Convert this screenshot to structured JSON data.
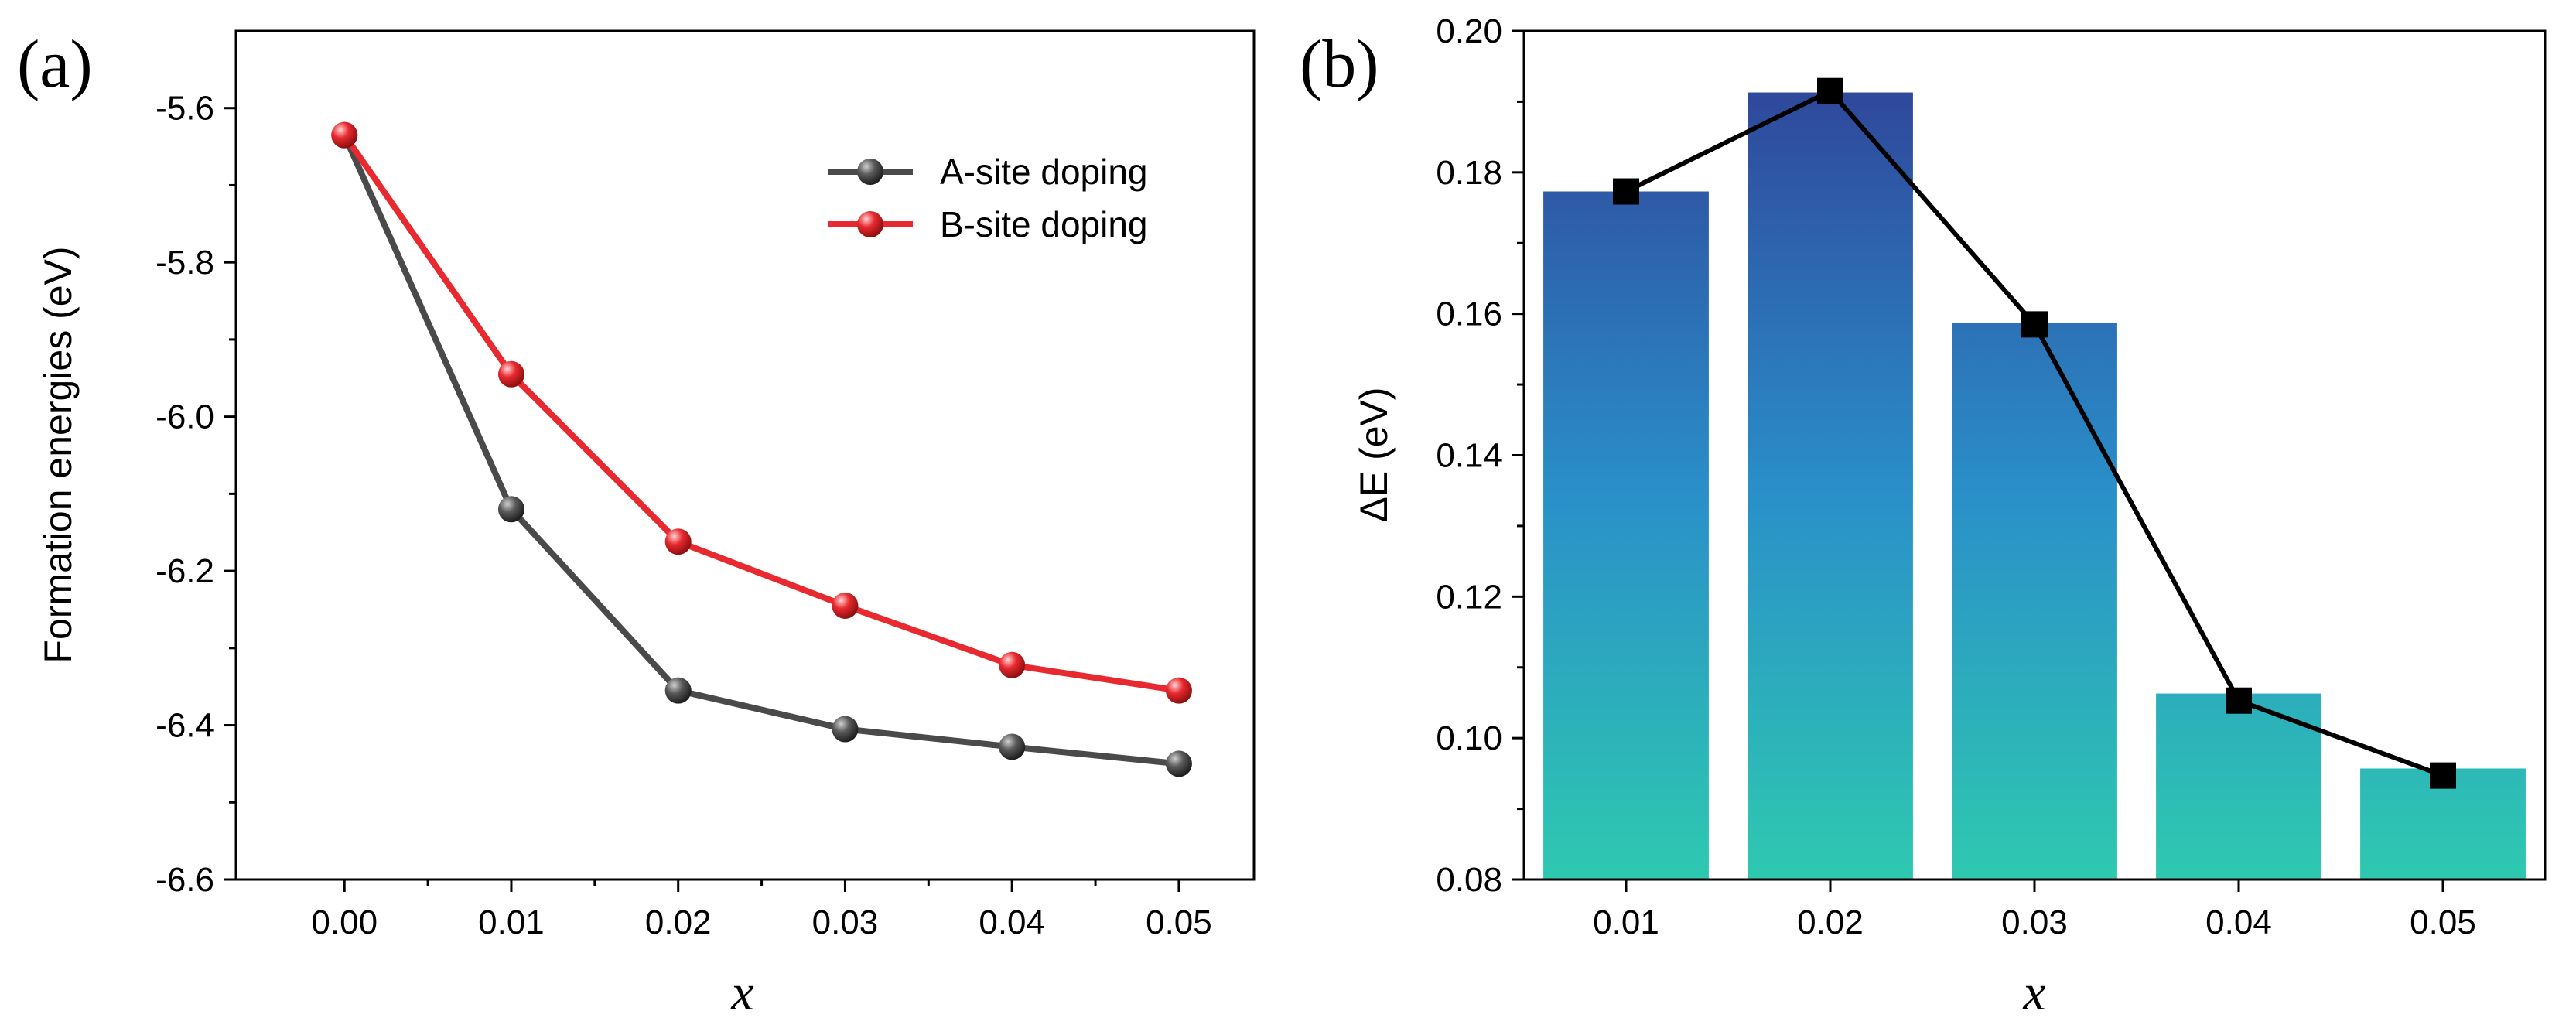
{
  "chart_data": [
    {
      "panel": "(a)",
      "type": "line",
      "xlabel": "x",
      "ylabel": "Formation energies (eV)",
      "x": [
        0.0,
        0.01,
        0.02,
        0.03,
        0.04,
        0.05
      ],
      "xticks": [
        "0.00",
        "0.01",
        "0.02",
        "0.03",
        "0.04",
        "0.05"
      ],
      "xlim": [
        -0.0065,
        0.0545
      ],
      "ylim": [
        -6.6,
        -5.5
      ],
      "yticks": [
        -6.6,
        -6.4,
        -6.2,
        -6.0,
        -5.8,
        -5.6
      ],
      "ytick_labels": [
        "-6.6",
        "-6.4",
        "-6.2",
        "-6.0",
        "-5.8",
        "-5.6"
      ],
      "legend_position": "top-right",
      "series": [
        {
          "name": "A-site doping",
          "color": "#4a4a4a",
          "values": [
            -5.635,
            -6.12,
            -6.355,
            -6.405,
            -6.428,
            -6.45
          ]
        },
        {
          "name": "B-site doping",
          "color": "#e8292f",
          "values": [
            -5.635,
            -5.945,
            -6.162,
            -6.245,
            -6.322,
            -6.355
          ]
        }
      ]
    },
    {
      "panel": "(b)",
      "type": "bar",
      "xlabel": "x",
      "ylabel": "ΔE (eV)",
      "categories": [
        "0.01",
        "0.02",
        "0.03",
        "0.04",
        "0.05"
      ],
      "values": [
        0.1773,
        0.1913,
        0.1587,
        0.1063,
        0.0957
      ],
      "line_values": [
        0.1773,
        0.1915,
        0.1585,
        0.1053,
        0.0947
      ],
      "ylim": [
        0.08,
        0.2
      ],
      "yticks": [
        0.08,
        0.1,
        0.12,
        0.14,
        0.16,
        0.18,
        0.2
      ],
      "ytick_labels": [
        "0.08",
        "0.10",
        "0.12",
        "0.14",
        "0.16",
        "0.18",
        "0.20"
      ],
      "bar_gradient": {
        "top": "#2f4a9c",
        "mid": "#2a8fc9",
        "bottom": "#2ec9b0"
      },
      "line_color": "#000000"
    }
  ]
}
